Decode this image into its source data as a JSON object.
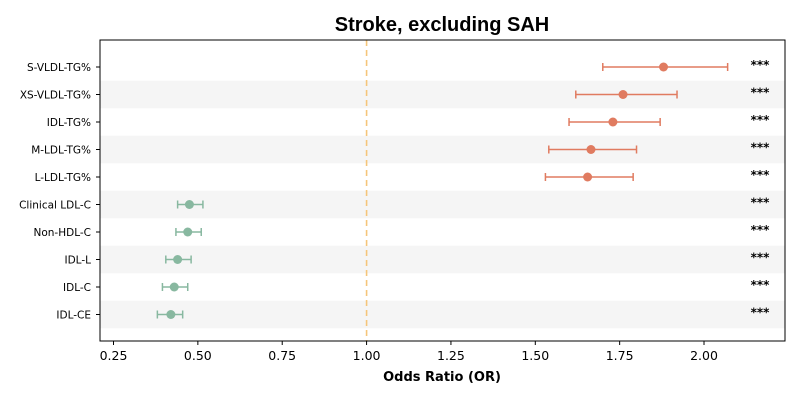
{
  "chart_data": {
    "type": "forest",
    "title": "Stroke, excluding SAH",
    "xlabel": "Odds Ratio (OR)",
    "xlim": [
      0.21,
      2.24
    ],
    "xticks": [
      0.25,
      0.5,
      0.75,
      1.0,
      1.25,
      1.5,
      1.75,
      2.0
    ],
    "xtick_labels": [
      "0.25",
      "0.50",
      "0.75",
      "1.00",
      "1.25",
      "1.50",
      "1.75",
      "2.00"
    ],
    "reference_line": 1.0,
    "reference_color": "#f5c57a",
    "colors": {
      "positive": "#e07b60",
      "negative": "#88b8a0",
      "stripe": "#f5f5f5"
    },
    "rows": [
      {
        "label": "S-VLDL-TG%",
        "or": 1.88,
        "ci_low": 1.7,
        "ci_high": 2.07,
        "sig": "***",
        "group": "positive"
      },
      {
        "label": "XS-VLDL-TG%",
        "or": 1.76,
        "ci_low": 1.62,
        "ci_high": 1.92,
        "sig": "***",
        "group": "positive"
      },
      {
        "label": "IDL-TG%",
        "or": 1.73,
        "ci_low": 1.6,
        "ci_high": 1.87,
        "sig": "***",
        "group": "positive"
      },
      {
        "label": "M-LDL-TG%",
        "or": 1.665,
        "ci_low": 1.54,
        "ci_high": 1.8,
        "sig": "***",
        "group": "positive"
      },
      {
        "label": "L-LDL-TG%",
        "or": 1.655,
        "ci_low": 1.53,
        "ci_high": 1.79,
        "sig": "***",
        "group": "positive"
      },
      {
        "label": "Clinical LDL-C",
        "or": 0.475,
        "ci_low": 0.44,
        "ci_high": 0.515,
        "sig": "***",
        "group": "negative"
      },
      {
        "label": "Non-HDL-C",
        "or": 0.47,
        "ci_low": 0.435,
        "ci_high": 0.51,
        "sig": "***",
        "group": "negative"
      },
      {
        "label": "IDL-L",
        "or": 0.44,
        "ci_low": 0.405,
        "ci_high": 0.48,
        "sig": "***",
        "group": "negative"
      },
      {
        "label": "IDL-C",
        "or": 0.43,
        "ci_low": 0.395,
        "ci_high": 0.47,
        "sig": "***",
        "group": "negative"
      },
      {
        "label": "IDL-CE",
        "or": 0.42,
        "ci_low": 0.38,
        "ci_high": 0.455,
        "sig": "***",
        "group": "negative"
      }
    ]
  }
}
